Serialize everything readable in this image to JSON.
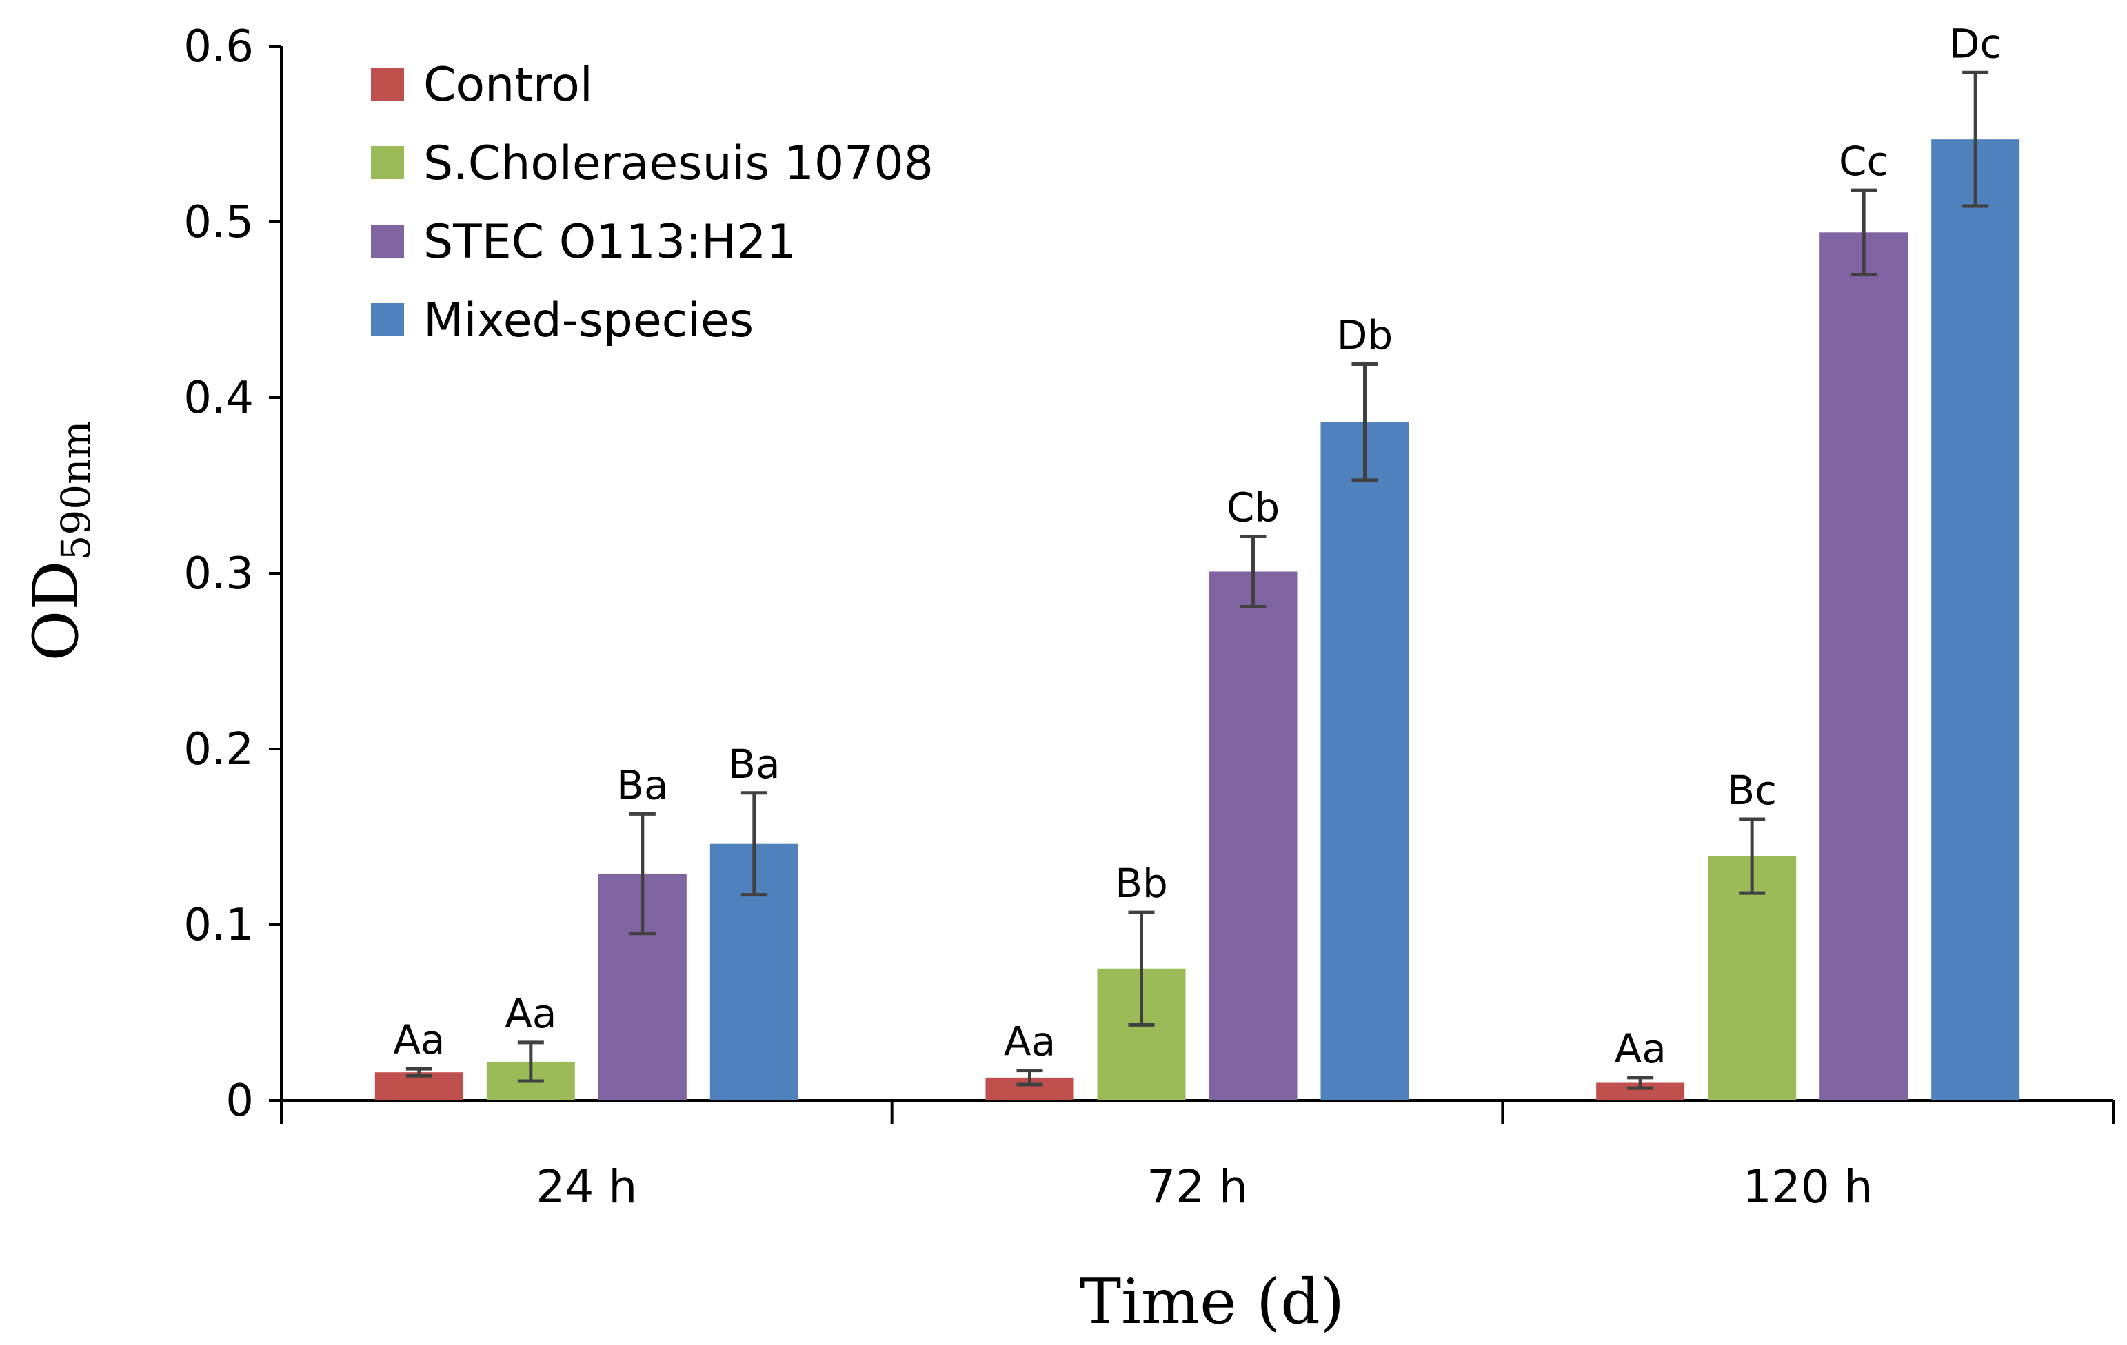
{
  "chart_data": {
    "type": "bar",
    "title": "",
    "xlabel": "Time (d)",
    "ylabel_main": "OD",
    "ylabel_sub": "590nm",
    "ylim": [
      0,
      0.6
    ],
    "yticks": [
      "0",
      "0.1",
      "0.2",
      "0.3",
      "0.4",
      "0.5",
      "0.6"
    ],
    "ytick_values": [
      0,
      0.1,
      0.2,
      0.3,
      0.4,
      0.5,
      0.6
    ],
    "categories": [
      "24 h",
      "72 h",
      "120 h"
    ],
    "grid": false,
    "legend_position": "top-left",
    "series": [
      {
        "name": "Control",
        "color": "#C0504D",
        "values": [
          0.016,
          0.013,
          0.01
        ],
        "errors": [
          0.002,
          0.004,
          0.003
        ],
        "labels": [
          "Aa",
          "Aa",
          "Aa"
        ]
      },
      {
        "name": "S.Choleraesuis 10708",
        "color": "#9BBB59",
        "values": [
          0.022,
          0.075,
          0.139
        ],
        "errors": [
          0.011,
          0.032,
          0.021
        ],
        "labels": [
          "Aa",
          "Bb",
          "Bc"
        ]
      },
      {
        "name": "STEC O113:H21",
        "color": "#8064A2",
        "values": [
          0.129,
          0.301,
          0.494
        ],
        "errors": [
          0.034,
          0.02,
          0.024
        ],
        "labels": [
          "Ba",
          "Cb",
          "Cc"
        ]
      },
      {
        "name": "Mixed-species",
        "color": "#4F81BD",
        "values": [
          0.146,
          0.386,
          0.547
        ],
        "errors": [
          0.029,
          0.033,
          0.038
        ],
        "labels": [
          "Ba",
          "Db",
          "Dc"
        ]
      }
    ]
  }
}
